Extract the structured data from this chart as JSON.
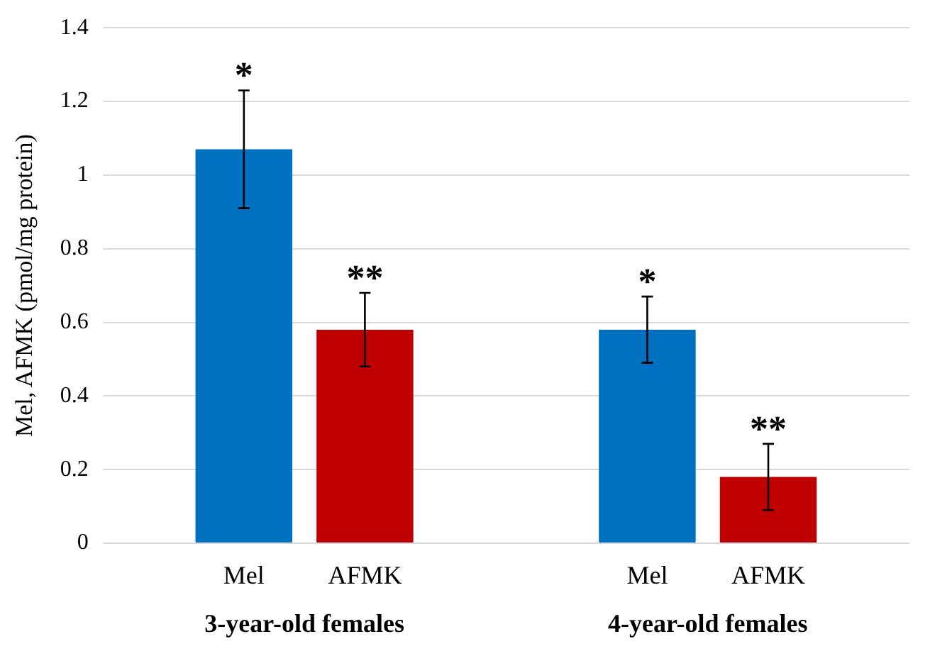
{
  "chart_data": {
    "type": "bar",
    "ylabel": "Mel, AFMK (pmol/mg protein)",
    "categories": [
      "3-year-old females",
      "4-year-old females"
    ],
    "series": [
      {
        "name": "Mel",
        "color": "#0070c0",
        "values": [
          1.07,
          0.58
        ],
        "errors": [
          0.16,
          0.09
        ],
        "value_labels": [
          "*",
          "*"
        ]
      },
      {
        "name": "AFMK",
        "color": "#c00000",
        "values": [
          0.58,
          0.18
        ],
        "errors": [
          0.1,
          0.09
        ],
        "value_labels": [
          "**",
          "**"
        ]
      }
    ],
    "ylim": [
      0,
      1.4
    ],
    "yticks": [
      0,
      0.2,
      0.4,
      0.6,
      0.8,
      1,
      1.2,
      1.4
    ],
    "grid": "y",
    "legend": false
  }
}
